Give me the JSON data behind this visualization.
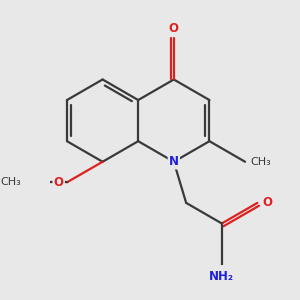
{
  "bg_color": "#e8e8e8",
  "bond_color": "#3a3a3a",
  "N_color": "#2020dd",
  "O_color": "#dd2020",
  "linewidth": 1.6,
  "figsize": [
    3.0,
    3.0
  ],
  "dpi": 100,
  "xlim": [
    -2.5,
    3.5
  ],
  "ylim": [
    -3.5,
    2.5
  ]
}
